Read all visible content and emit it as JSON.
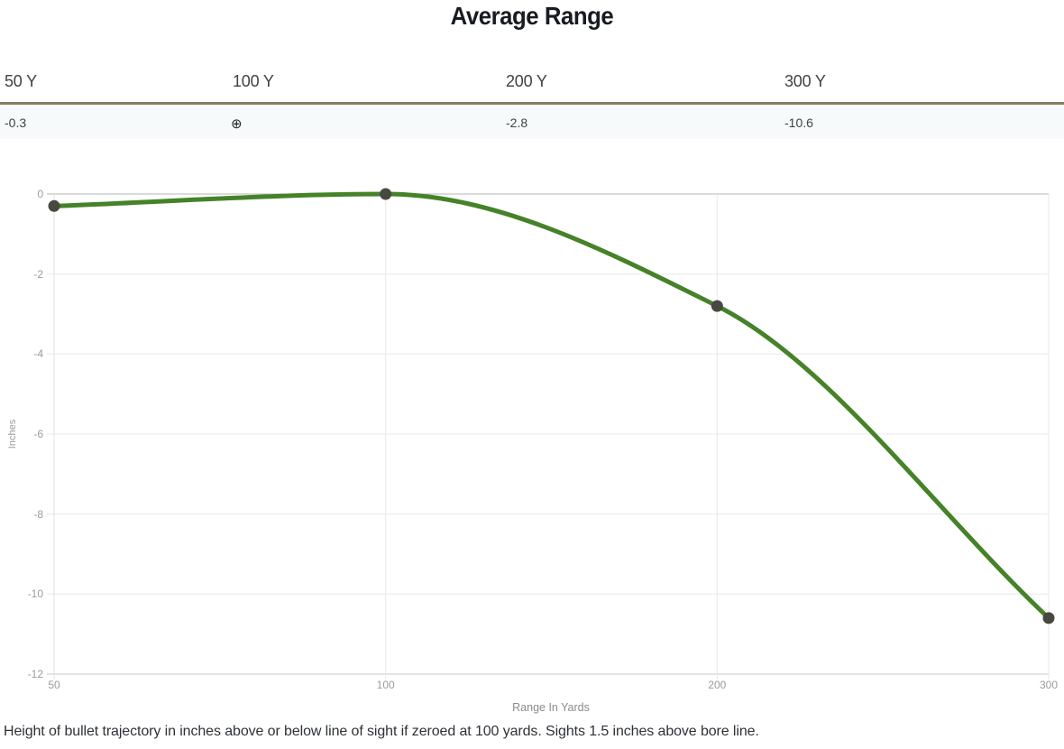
{
  "page": {
    "title": "Average Range",
    "caption": "Height of bullet trajectory in inches above or below line of sight if zeroed at 100 yards. Sights 1.5 inches above bore line."
  },
  "range_table": {
    "columns": [
      {
        "label": "50 Y",
        "value": "-0.3"
      },
      {
        "label": "100 Y",
        "value": "⊕"
      },
      {
        "label": "200 Y",
        "value": "-2.8"
      },
      {
        "label": "300 Y",
        "value": "-10.6"
      }
    ],
    "zero_symbol": "⊕",
    "zero_symbol_meaning": "zeroed-at-this-range",
    "divider_color": "#867d60"
  },
  "chart_data": {
    "type": "line",
    "categories": [
      "50",
      "100",
      "200",
      "300"
    ],
    "values": [
      -0.3,
      0.0,
      -2.8,
      -10.6
    ],
    "title": "Average Range",
    "xlabel": "Range In Yards",
    "ylabel": "Inches",
    "ylim": [
      -12,
      0
    ],
    "yticks": [
      0,
      -2,
      -4,
      -6,
      -8,
      -10,
      -12
    ],
    "grid": true,
    "legend": "none",
    "x_spacing": "categorical-even",
    "interpolation": "monotone",
    "line_color": "#458228",
    "line_width": 5,
    "point_color": "#47483f",
    "point_radius": 6.5,
    "grid_color": "#e8e8e8",
    "zero_line_color": "#b4b4b4",
    "bottom_line_color": "#c9c9c9",
    "tick_label_color": "#9b9b9b"
  }
}
